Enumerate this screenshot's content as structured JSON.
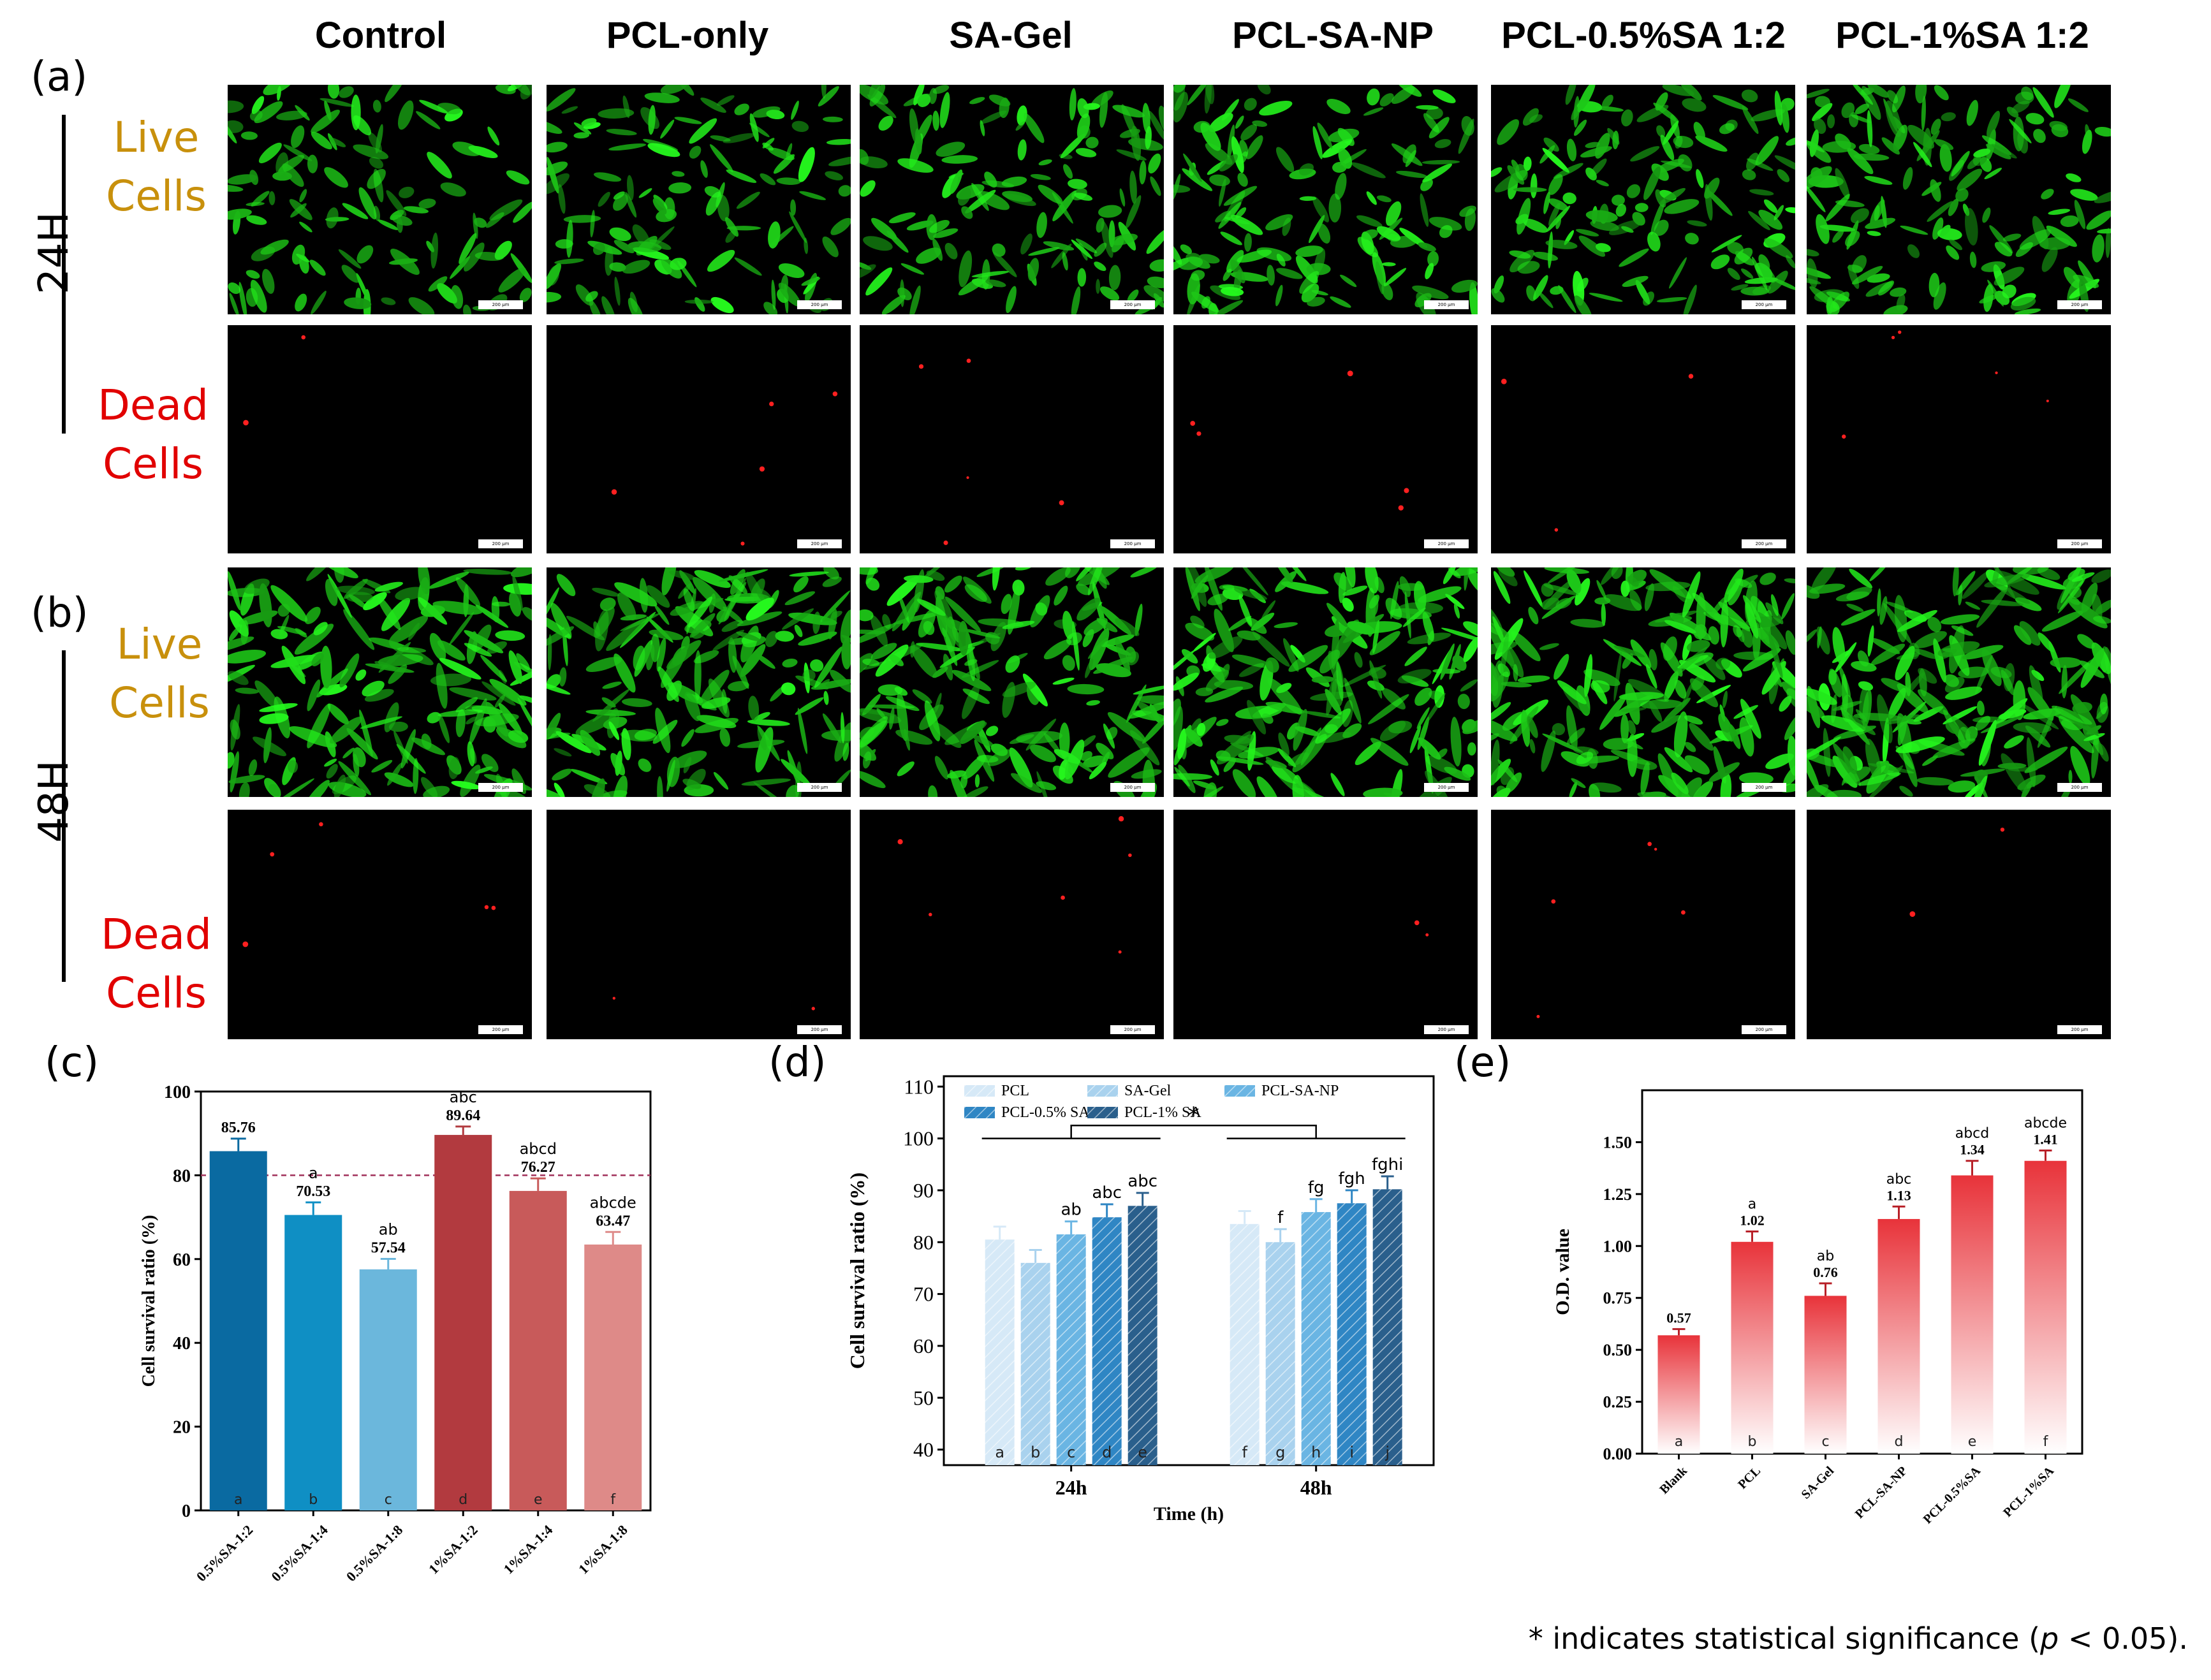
{
  "micrographs": {
    "columns": [
      "Control",
      "PCL-only",
      "SA-Gel",
      "PCL-SA-NP",
      "PCL-0.5%SA 1:2",
      "PCL-1%SA 1:2"
    ],
    "panel_a": "(a)",
    "panel_b": "(b)",
    "time_24": "24H",
    "time_48": "48H",
    "live_label": [
      "Live",
      "Cells"
    ],
    "dead_label": [
      "Dead",
      "Cells"
    ],
    "scale_bar": "200 μm",
    "colors": {
      "live": "#c8900c",
      "dead": "#e10000",
      "live_stain": "#22e61e",
      "dead_stain": "#ff2020"
    }
  },
  "panel_c_letter": "(c)",
  "panel_d_letter": "(d)",
  "panel_e_letter": "(e)",
  "chart_data": [
    {
      "id": "c",
      "type": "bar",
      "ylabel": "Cell survival ratio (%)",
      "ylim": [
        0,
        100
      ],
      "yticks": [
        0,
        20,
        40,
        60,
        80,
        100
      ],
      "reference_line": 80,
      "categories": [
        "0.5%SA-1:2",
        "0.5%SA-1:4",
        "0.5%SA-1:8",
        "1%SA-1:2",
        "1%SA-1:4",
        "1%SA-1:8"
      ],
      "values": [
        85.76,
        70.53,
        57.54,
        89.64,
        76.27,
        63.47
      ],
      "value_labels": [
        "85.76",
        "70.53",
        "57.54",
        "89.64",
        "76.27",
        "63.47"
      ],
      "errors": [
        3,
        3,
        2.5,
        2,
        3,
        3
      ],
      "sig_labels": [
        "",
        "a",
        "ab",
        "abc",
        "abcd",
        "abcde"
      ],
      "bar_labels": [
        "a",
        "b",
        "c",
        "d",
        "e",
        "f"
      ],
      "colors": [
        "#0a6aa1",
        "#0f8fc4",
        "#6bb7dc",
        "#b23a3f",
        "#c85a5a",
        "#de8a88"
      ]
    },
    {
      "id": "d",
      "type": "bar",
      "xlabel": "Time (h)",
      "ylabel": "Cell survival ratio (%)",
      "ylim": [
        37,
        112
      ],
      "yticks": [
        40,
        50,
        60,
        70,
        80,
        90,
        100,
        110
      ],
      "categories": [
        "24h",
        "48h"
      ],
      "series": [
        {
          "name": "PCL",
          "values": [
            80.5,
            83.5
          ],
          "errors": [
            2.5,
            2.5
          ],
          "color": "#d6e9f7"
        },
        {
          "name": "SA-Gel",
          "values": [
            76,
            80
          ],
          "errors": [
            2.5,
            2.5
          ],
          "color": "#a9d2ee"
        },
        {
          "name": "PCL-SA-NP",
          "values": [
            81.5,
            85.8
          ],
          "errors": [
            2.5,
            2.5
          ],
          "color": "#6ab5e3"
        },
        {
          "name": "PCL-0.5% SA",
          "values": [
            84.8,
            87.5
          ],
          "errors": [
            2.5,
            2.5
          ],
          "color": "#2f86c4"
        },
        {
          "name": "PCL-1% SA",
          "values": [
            87,
            90.2
          ],
          "errors": [
            2.5,
            2.5
          ],
          "color": "#2a5f8c"
        }
      ],
      "sig_labels": [
        [
          "",
          "",
          "ab",
          "abc",
          "abc"
        ],
        [
          "",
          "f",
          "fg",
          "fgh",
          "fghi"
        ]
      ],
      "bar_labels": [
        [
          "a",
          "b",
          "c",
          "d",
          "e"
        ],
        [
          "f",
          "g",
          "h",
          "i",
          "j"
        ]
      ],
      "significance_marker": "*"
    },
    {
      "id": "e",
      "type": "bar",
      "ylabel": "O.D. value",
      "ylim": [
        0,
        1.75
      ],
      "yticks": [
        "0.00",
        "0.25",
        "0.50",
        "0.75",
        "1.00",
        "1.25",
        "1.50"
      ],
      "categories": [
        "Blank",
        "PCL",
        "SA-Gel",
        "PCL-SA-NP",
        "PCL-0.5%SA",
        "PCL-1%SA"
      ],
      "values": [
        0.57,
        1.02,
        0.76,
        1.13,
        1.34,
        1.41
      ],
      "value_labels": [
        "0.57",
        "1.02",
        "0.76",
        "1.13",
        "1.34",
        "1.41"
      ],
      "errors": [
        0.03,
        0.05,
        0.06,
        0.06,
        0.07,
        0.05
      ],
      "sig_labels": [
        "",
        "a",
        "ab",
        "abc",
        "abcd",
        "abcde"
      ],
      "bar_labels": [
        "a",
        "b",
        "c",
        "d",
        "e",
        "f"
      ],
      "color": "#e8333a"
    }
  ],
  "footnote": {
    "prefix": "* indicates statistical significance (",
    "p": "p",
    "suffix": " < 0.05)."
  }
}
